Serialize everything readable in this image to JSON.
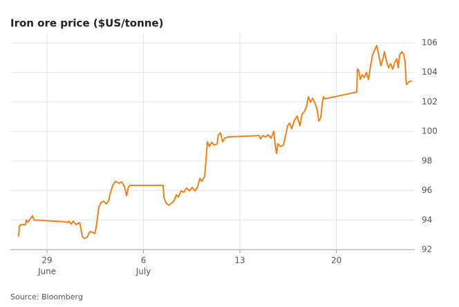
{
  "chart_data": {
    "type": "line",
    "title": "Iron ore price ($US/tonne)",
    "source": "Source: Bloomberg",
    "series": [
      {
        "name": "Iron ore price",
        "color": "#e8821e",
        "x": [
          26.94,
          26.99,
          27.09,
          27.44,
          27.49,
          27.6,
          27.8,
          27.95,
          28.05,
          30.4,
          30.5,
          30.6,
          30.76,
          30.91,
          31.11,
          31.36,
          31.46,
          31.56,
          31.71,
          31.91,
          32.11,
          32.31,
          32.46,
          32.56,
          32.66,
          32.76,
          32.91,
          33.11,
          33.32,
          33.47,
          33.62,
          33.77,
          33.97,
          34.22,
          34.42,
          34.62,
          34.77,
          34.92,
          35.02,
          37.43,
          37.48,
          37.63,
          37.83,
          37.98,
          38.23,
          38.38,
          38.53,
          38.73,
          38.93,
          39.14,
          39.34,
          39.54,
          39.74,
          39.94,
          40.09,
          40.24,
          40.44,
          40.54,
          40.64,
          40.79,
          40.94,
          41.14,
          41.34,
          41.44,
          41.59,
          41.74,
          41.89,
          42.15,
          44.4,
          44.5,
          44.65,
          44.86,
          45.06,
          45.26,
          45.46,
          45.56,
          45.66,
          45.76,
          45.96,
          46.16,
          46.36,
          46.46,
          46.61,
          46.76,
          46.96,
          47.16,
          47.36,
          47.51,
          47.66,
          47.82,
          47.97,
          48.12,
          48.27,
          48.47,
          48.62,
          48.72,
          48.87,
          48.97,
          49.06,
          49.17,
          51.48,
          51.53,
          51.63,
          51.73,
          51.88,
          52.03,
          52.18,
          52.33,
          52.48,
          52.63,
          52.78,
          52.93,
          53.08,
          53.23,
          53.39,
          53.49,
          53.64,
          53.79,
          53.94,
          54.09,
          54.24,
          54.39,
          54.49,
          54.59,
          54.74,
          54.89,
          54.99,
          55.04,
          55.09,
          55.19,
          55.29,
          55.49
        ],
        "values": [
          92.89,
          93.59,
          93.69,
          93.69,
          94.01,
          93.83,
          94.11,
          94.29,
          94.01,
          93.87,
          93.83,
          93.92,
          93.73,
          93.92,
          93.69,
          93.83,
          93.45,
          92.89,
          92.75,
          92.84,
          93.22,
          93.17,
          93.08,
          93.45,
          94.15,
          94.86,
          95.18,
          95.28,
          95.09,
          95.32,
          95.89,
          96.35,
          96.63,
          96.49,
          96.59,
          96.26,
          95.65,
          96.26,
          96.35,
          96.35,
          95.56,
          95.18,
          95.0,
          95.09,
          95.32,
          95.7,
          95.56,
          95.98,
          95.89,
          96.17,
          95.98,
          96.21,
          95.98,
          96.26,
          96.82,
          96.63,
          96.96,
          98.04,
          99.3,
          98.98,
          99.26,
          99.08,
          99.16,
          99.77,
          99.91,
          99.3,
          99.54,
          99.63,
          99.72,
          99.49,
          99.72,
          99.63,
          99.77,
          99.54,
          100.01,
          99.08,
          98.51,
          99.16,
          98.98,
          99.08,
          99.91,
          100.38,
          100.57,
          100.19,
          100.75,
          101.04,
          100.38,
          101.18,
          101.32,
          101.64,
          102.35,
          101.97,
          102.25,
          101.88,
          101.41,
          100.71,
          100.94,
          101.88,
          102.35,
          102.21,
          102.67,
          104.22,
          104.13,
          103.52,
          103.84,
          103.66,
          103.99,
          103.52,
          104.45,
          105.16,
          105.53,
          105.81,
          105.16,
          104.45,
          104.92,
          105.39,
          104.78,
          104.31,
          104.59,
          104.22,
          104.69,
          104.92,
          104.31,
          105.16,
          105.39,
          105.25,
          104.69,
          103.75,
          103.19,
          103.28,
          103.38,
          103.42
        ]
      }
    ],
    "xlim": [
      26.34,
      55.69
    ],
    "xticks": [
      {
        "value": 29,
        "label": "29"
      },
      {
        "value": 36,
        "label": "6"
      },
      {
        "value": 43,
        "label": "13"
      },
      {
        "value": 50,
        "label": "20"
      }
    ],
    "xtick_months": [
      {
        "value": 29,
        "label": "June"
      },
      {
        "value": 36,
        "label": "July"
      }
    ],
    "ylim": [
      92,
      106
    ],
    "yticks": [
      92,
      94,
      96,
      98,
      100,
      102,
      104,
      106
    ],
    "grid": true
  }
}
